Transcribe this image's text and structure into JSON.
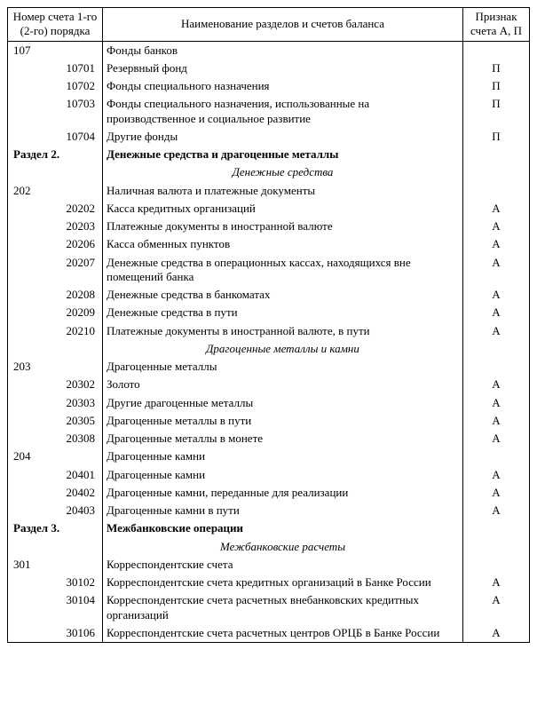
{
  "header": {
    "col_num": "Номер счета 1-го (2-го) порядка",
    "col_name": "Наименование разделов и счетов баланса",
    "col_sign": "Признак счета А, П"
  },
  "rows": [
    {
      "num": "107",
      "num_cls": "num-main",
      "name": "Фонды банков",
      "name_cls": "",
      "sign": ""
    },
    {
      "num": "10701",
      "num_cls": "num-sub",
      "name": "Резервный фонд",
      "name_cls": "",
      "sign": "П"
    },
    {
      "num": "10702",
      "num_cls": "num-sub",
      "name": "Фонды специального назначения",
      "name_cls": "",
      "sign": "П"
    },
    {
      "num": "10703",
      "num_cls": "num-sub",
      "name": "Фонды специального назначения, использованные на производственное и социальное развитие",
      "name_cls": "",
      "sign": "П"
    },
    {
      "num": "10704",
      "num_cls": "num-sub",
      "name": "Другие фонды",
      "name_cls": "",
      "sign": "П"
    },
    {
      "num": "Раздел 2.",
      "num_cls": "num-main bold",
      "name": "Денежные средства и драгоценные металлы",
      "name_cls": "bold",
      "sign": ""
    },
    {
      "num": "",
      "num_cls": "",
      "name": "Денежные средства",
      "name_cls": "italic-center",
      "sign": ""
    },
    {
      "num": "202",
      "num_cls": "num-main",
      "name": "Наличная валюта и платежные документы",
      "name_cls": "",
      "sign": ""
    },
    {
      "num": "20202",
      "num_cls": "num-sub",
      "name": "Касса кредитных организаций",
      "name_cls": "",
      "sign": "А"
    },
    {
      "num": "20203",
      "num_cls": "num-sub",
      "name": "Платежные документы в иностранной валюте",
      "name_cls": "",
      "sign": "А"
    },
    {
      "num": "20206",
      "num_cls": "num-sub",
      "name": "Касса обменных пунктов",
      "name_cls": "",
      "sign": "А"
    },
    {
      "num": "20207",
      "num_cls": "num-sub",
      "name": "Денежные средства в операционных кассах, находящихся вне помещений банка",
      "name_cls": "",
      "sign": "А"
    },
    {
      "num": "20208",
      "num_cls": "num-sub",
      "name": "Денежные средства в банкоматах",
      "name_cls": "",
      "sign": "А"
    },
    {
      "num": "20209",
      "num_cls": "num-sub",
      "name": "Денежные средства в пути",
      "name_cls": "",
      "sign": "А"
    },
    {
      "num": "20210",
      "num_cls": "num-sub",
      "name": "Платежные документы в иностранной валюте, в пути",
      "name_cls": "",
      "sign": "А"
    },
    {
      "num": "",
      "num_cls": "",
      "name": "Драгоценные металлы и камни",
      "name_cls": "italic-center",
      "sign": ""
    },
    {
      "num": "203",
      "num_cls": "num-main",
      "name": "Драгоценные металлы",
      "name_cls": "",
      "sign": ""
    },
    {
      "num": "20302",
      "num_cls": "num-sub",
      "name": "Золото",
      "name_cls": "",
      "sign": "А"
    },
    {
      "num": "20303",
      "num_cls": "num-sub",
      "name": "Другие драгоценные металлы",
      "name_cls": "",
      "sign": "А"
    },
    {
      "num": "20305",
      "num_cls": "num-sub",
      "name": "Драгоценные металлы в пути",
      "name_cls": "",
      "sign": "А"
    },
    {
      "num": "20308",
      "num_cls": "num-sub",
      "name": "Драгоценные металлы в монете",
      "name_cls": "",
      "sign": "А"
    },
    {
      "num": "204",
      "num_cls": "num-main",
      "name": "Драгоценные камни",
      "name_cls": "",
      "sign": ""
    },
    {
      "num": "20401",
      "num_cls": "num-sub",
      "name": "Драгоценные камни",
      "name_cls": "",
      "sign": "А"
    },
    {
      "num": "20402",
      "num_cls": "num-sub",
      "name": "Драгоценные камни, переданные для реализации",
      "name_cls": "",
      "sign": "А"
    },
    {
      "num": "20403",
      "num_cls": "num-sub",
      "name": "Драгоценные камни в пути",
      "name_cls": "",
      "sign": "А"
    },
    {
      "num": "Раздел 3.",
      "num_cls": "num-main bold",
      "name": "Межбанковские операции",
      "name_cls": "bold",
      "sign": ""
    },
    {
      "num": "",
      "num_cls": "",
      "name": "Межбанковские расчеты",
      "name_cls": "italic-center",
      "sign": ""
    },
    {
      "num": "301",
      "num_cls": "num-main",
      "name": "Корреспондентские счета",
      "name_cls": "",
      "sign": ""
    },
    {
      "num": "30102",
      "num_cls": "num-sub",
      "name": "Корреспондентские счета кредитных организаций в Банке России",
      "name_cls": "",
      "sign": "А"
    },
    {
      "num": "30104",
      "num_cls": "num-sub",
      "name": "Корреспондентские счета расчетных внебанковских кредитных организаций",
      "name_cls": "",
      "sign": "А"
    },
    {
      "num": "30106",
      "num_cls": "num-sub",
      "name": "Корреспондентские счета расчетных центров ОРЦБ в Банке России",
      "name_cls": "",
      "sign": "А"
    }
  ]
}
